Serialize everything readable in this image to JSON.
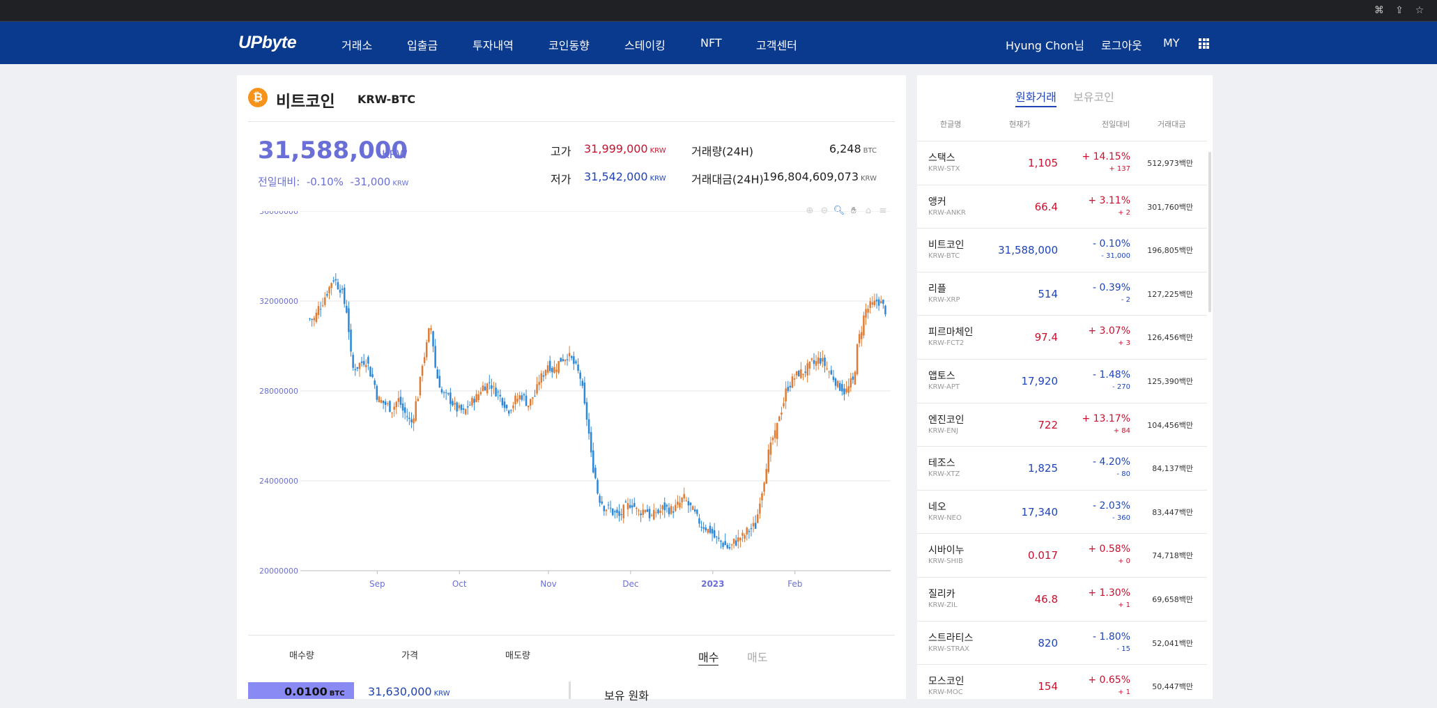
{
  "nav": {
    "logo": "UPbyte",
    "menu": [
      "거래소",
      "입출금",
      "투자내역",
      "코인동향",
      "스테이킹",
      "NFT",
      "고객센터"
    ],
    "user": "Hyung Chon님",
    "logout": "로그아웃",
    "my": "MY"
  },
  "coin": {
    "icon_symbol": "₿",
    "name": "비트코인",
    "code": "KRW-BTC",
    "price": "31,588,000",
    "price_unit": "KRW",
    "change_label": "전일대비:",
    "change_pct": "-0.10%",
    "change_amt": "-31,000",
    "change_unit": "KRW",
    "high_label": "고가",
    "high": "31,999,000",
    "low_label": "저가",
    "low": "31,542,000",
    "krw_unit": "KRW",
    "vol_label": "거래량(24H)",
    "vol": "6,248",
    "vol_unit": "BTC",
    "amt_label": "거래대금(24H)",
    "amt": "196,804,609,073",
    "amt_unit": "KRW"
  },
  "chart_data": {
    "type": "candlestick",
    "y_ticks": [
      "36000000",
      "32000000",
      "28000000",
      "24000000",
      "20000000"
    ],
    "x_ticks": [
      "Sep",
      "Oct",
      "Nov",
      "Dec",
      "2023",
      "Feb"
    ],
    "ylim": [
      20000000,
      36000000
    ],
    "up_color": "#e07b33",
    "down_color": "#2b87d9",
    "closes": [
      31200000,
      31800000,
      32400000,
      33000000,
      32600000,
      31600000,
      29000000,
      29200000,
      29400000,
      28600000,
      27600000,
      27400000,
      27200000,
      27600000,
      27000000,
      26600000,
      27800000,
      29600000,
      30800000,
      28600000,
      27800000,
      27600000,
      27200000,
      27000000,
      27400000,
      27700000,
      28200000,
      28400000,
      28000000,
      27600000,
      27200000,
      27600000,
      27800000,
      27400000,
      27800000,
      28600000,
      29200000,
      29000000,
      29400000,
      29600000,
      29200000,
      28600000,
      26800000,
      24600000,
      23200000,
      22800000,
      22600000,
      22400000,
      22800000,
      23000000,
      22600000,
      22800000,
      22400000,
      22600000,
      22800000,
      22700000,
      22900000,
      23200000,
      22800000,
      22300000,
      22000000,
      21800000,
      21400000,
      21200000,
      21000000,
      21300000,
      21500000,
      21800000,
      22000000,
      23600000,
      25200000,
      26000000,
      27200000,
      28200000,
      28600000,
      28800000,
      29000000,
      29200000,
      29400000,
      29000000,
      28600000,
      28200000,
      28000000,
      28400000,
      30400000,
      31600000,
      31800000,
      32000000,
      31600000
    ]
  },
  "toolbar_icons": [
    "zoom-in-icon",
    "zoom-out-icon",
    "magnify-icon",
    "pan-hand-icon",
    "home-icon",
    "menu-icon"
  ],
  "orderbook": {
    "col_bid": "매수량",
    "col_price": "가격",
    "col_ask": "매도량",
    "tab_buy": "매수",
    "tab_sell": "매도",
    "qty": "0.0100",
    "qty_unit": "BTC",
    "price": "31,630,000",
    "price_unit": "KRW",
    "wallet": "보유 원화"
  },
  "market": {
    "tab_krw": "원화거래",
    "tab_own": "보유코인",
    "col_name": "한글명",
    "col_price": "현재가",
    "col_change": "전일대비",
    "col_volume": "거래대금",
    "rows": [
      {
        "name": "스택스",
        "code": "KRW-STX",
        "price": "1,105",
        "pct": "+ 14.15%",
        "diff": "+ 137",
        "vol": "512,973백만",
        "dir": "up"
      },
      {
        "name": "앵커",
        "code": "KRW-ANKR",
        "price": "66.4",
        "pct": "+ 3.11%",
        "diff": "+ 2",
        "vol": "301,760백만",
        "dir": "up"
      },
      {
        "name": "비트코인",
        "code": "KRW-BTC",
        "price": "31,588,000",
        "pct": "- 0.10%",
        "diff": "- 31,000",
        "vol": "196,805백만",
        "dir": "down"
      },
      {
        "name": "리플",
        "code": "KRW-XRP",
        "price": "514",
        "pct": "- 0.39%",
        "diff": "- 2",
        "vol": "127,225백만",
        "dir": "down"
      },
      {
        "name": "피르마체인",
        "code": "KRW-FCT2",
        "price": "97.4",
        "pct": "+ 3.07%",
        "diff": "+ 3",
        "vol": "126,456백만",
        "dir": "up"
      },
      {
        "name": "앱토스",
        "code": "KRW-APT",
        "price": "17,920",
        "pct": "- 1.48%",
        "diff": "- 270",
        "vol": "125,390백만",
        "dir": "down"
      },
      {
        "name": "엔진코인",
        "code": "KRW-ENJ",
        "price": "722",
        "pct": "+ 13.17%",
        "diff": "+ 84",
        "vol": "104,456백만",
        "dir": "up"
      },
      {
        "name": "테조스",
        "code": "KRW-XTZ",
        "price": "1,825",
        "pct": "- 4.20%",
        "diff": "- 80",
        "vol": "84,137백만",
        "dir": "down"
      },
      {
        "name": "네오",
        "code": "KRW-NEO",
        "price": "17,340",
        "pct": "- 2.03%",
        "diff": "- 360",
        "vol": "83,447백만",
        "dir": "down"
      },
      {
        "name": "시바이누",
        "code": "KRW-SHIB",
        "price": "0.017",
        "pct": "+ 0.58%",
        "diff": "+ 0",
        "vol": "74,718백만",
        "dir": "up"
      },
      {
        "name": "질리카",
        "code": "KRW-ZIL",
        "price": "46.8",
        "pct": "+ 1.30%",
        "diff": "+ 1",
        "vol": "69,658백만",
        "dir": "up"
      },
      {
        "name": "스트라티스",
        "code": "KRW-STRAX",
        "price": "820",
        "pct": "- 1.80%",
        "diff": "- 15",
        "vol": "52,041백만",
        "dir": "down"
      },
      {
        "name": "모스코인",
        "code": "KRW-MOC",
        "price": "154",
        "pct": "+ 0.65%",
        "diff": "+ 1",
        "vol": "50,447백만",
        "dir": "up"
      }
    ]
  },
  "colors": {
    "nav": "#0a3a8e",
    "up": "#c8102e",
    "down": "#1e44b8",
    "price": "#6a6fd8"
  }
}
